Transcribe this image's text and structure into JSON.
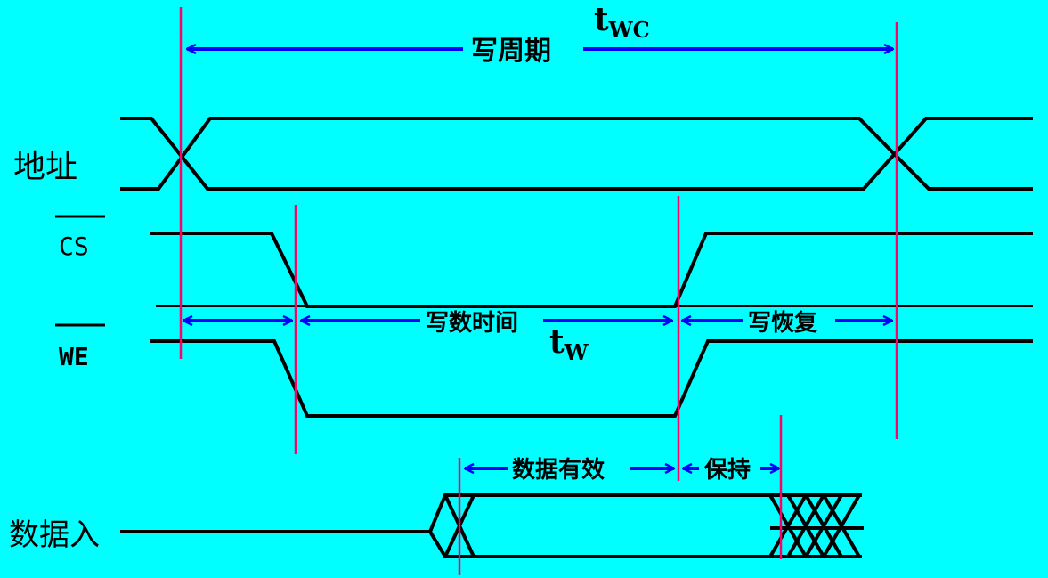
{
  "signals": {
    "address": "地址",
    "cs": "CS",
    "we": "WE",
    "data_in": "数据入"
  },
  "intervals": {
    "write_cycle": "写周期",
    "write_cycle_symbol": "t",
    "write_cycle_sub": "WC",
    "write_time": "写数时间",
    "write_time_symbol": "t",
    "write_time_sub": "W",
    "write_recovery": "写恢复",
    "data_valid": "数据有效",
    "hold": "保持"
  },
  "colors": {
    "background": "#00FFFF",
    "signal": "#000000",
    "arrow": "#0000FF",
    "marker": "#FF0066"
  }
}
